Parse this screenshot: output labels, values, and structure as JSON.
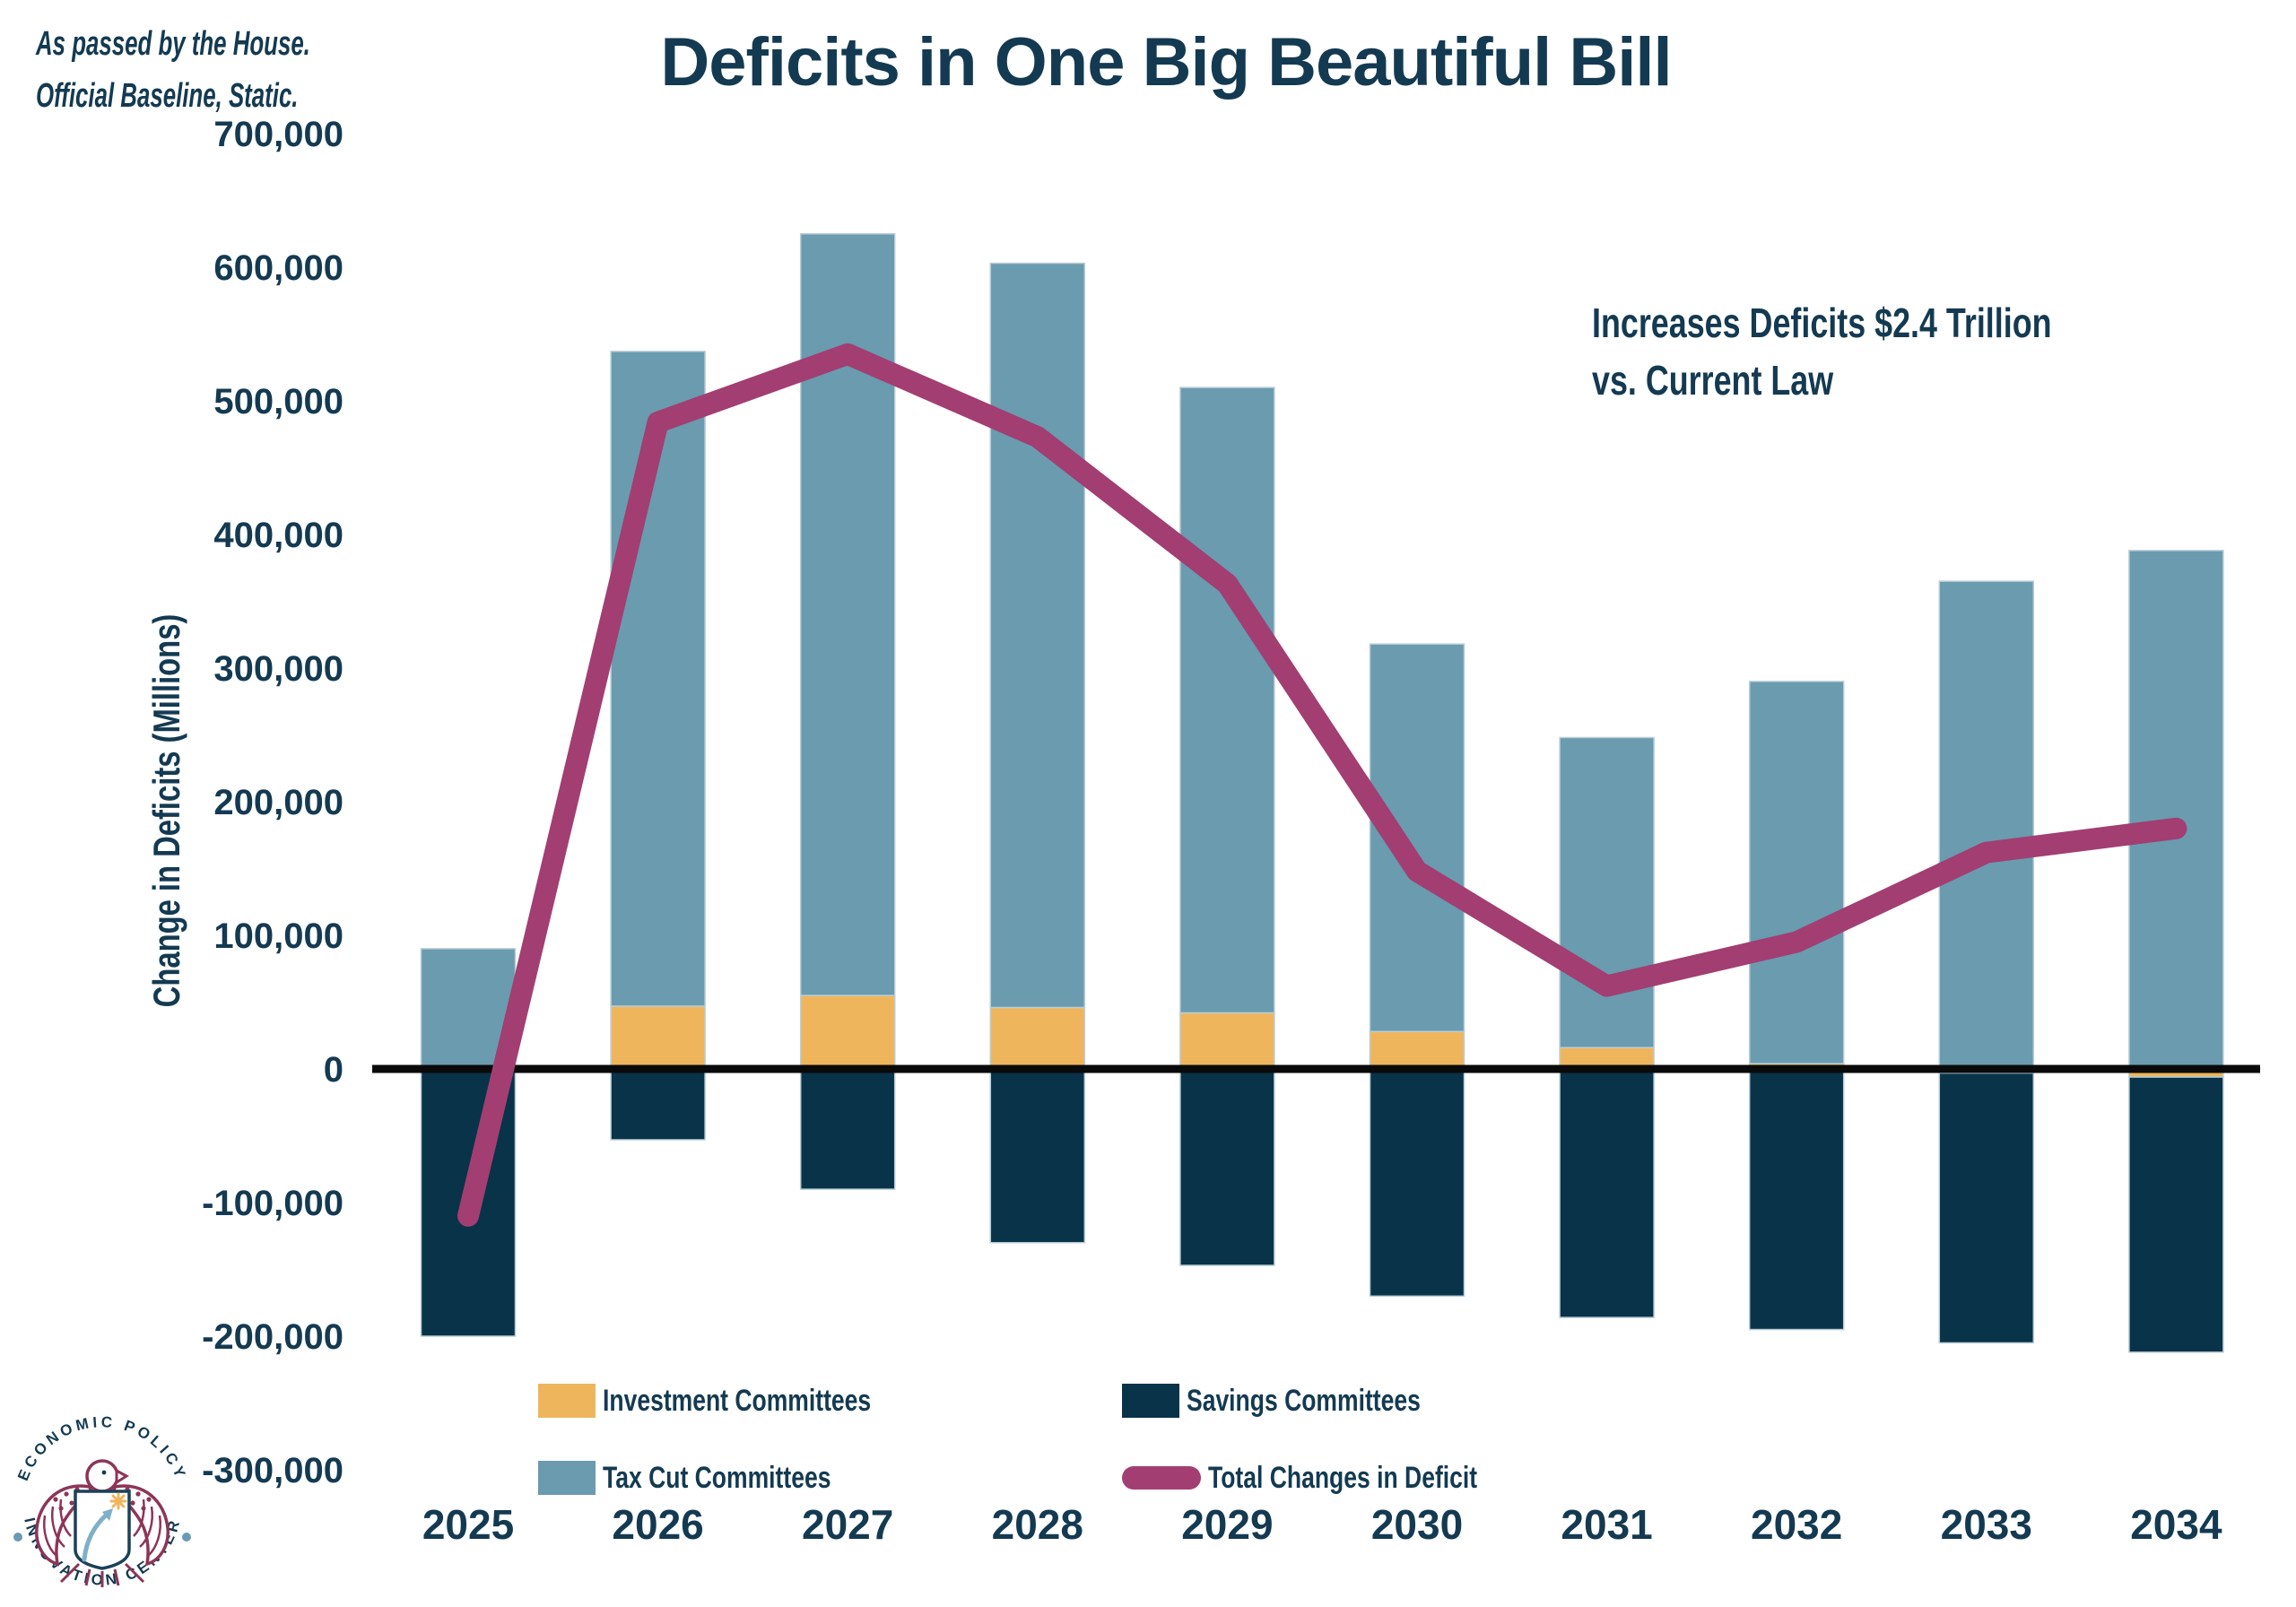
{
  "note": {
    "line1": "As passed by the House.",
    "line2": "Official Baseline, Static."
  },
  "title": "Deficits in One Big Beautiful Bill",
  "annotation": {
    "line1": "Increases Deficits $2.4 Trillion",
    "line2": "vs. Current Law"
  },
  "y_axis": {
    "title": "Change in Deficits (Millions)",
    "tick_values": [
      700000,
      600000,
      500000,
      400000,
      300000,
      200000,
      100000,
      0,
      -100000,
      -200000,
      -300000
    ],
    "tick_labels": [
      "700,000",
      "600,000",
      "500,000",
      "400,000",
      "300,000",
      "200,000",
      "100,000",
      "0",
      "-100,000",
      "-200,000",
      "-300,000"
    ]
  },
  "legend": {
    "items": [
      {
        "label": "Investment Committees",
        "color": "#EFB55C",
        "shape": "square"
      },
      {
        "label": "Savings Committees",
        "color": "#083349",
        "shape": "square"
      },
      {
        "label": "Tax Cut Committees",
        "color": "#6A9BAF",
        "shape": "square"
      },
      {
        "label": "Total Changes in Deficit",
        "color": "#A23E72",
        "shape": "pill"
      }
    ]
  },
  "logo": {
    "top_text": "ECONOMIC POLICY",
    "bottom_text": "INNOVATION CENTER"
  },
  "colors": {
    "background": "#FFFFFF",
    "text_navy": "#143A52",
    "bar_yellow": "#EFB55C",
    "bar_blue": "#6A9BAF",
    "bar_navy": "#083349",
    "line_magenta": "#A23E72",
    "axis_line": "#0A0A0A",
    "logo_maroon": "#8D3557",
    "logo_light_blue": "#7FB0C9",
    "logo_star_yellow": "#F0B45C"
  },
  "chart_data": {
    "type": "bar",
    "subtype": "stacked-bar-with-line-overlay",
    "title": "Deficits in One Big Beautiful Bill",
    "xlabel": "",
    "ylabel": "Change in Deficits (Millions)",
    "categories": [
      "2025",
      "2026",
      "2027",
      "2028",
      "2029",
      "2030",
      "2031",
      "2032",
      "2033",
      "2034"
    ],
    "series": [
      {
        "name": "Investment Committees",
        "type": "bar",
        "color": "#EFB55C",
        "values": [
          0,
          47000,
          55000,
          46000,
          42000,
          28000,
          16000,
          4000,
          -3000,
          -6000
        ]
      },
      {
        "name": "Tax Cut Committees",
        "type": "bar",
        "color": "#6A9BAF",
        "values": [
          90000,
          490000,
          570000,
          557000,
          468000,
          290000,
          232000,
          286000,
          365000,
          388000
        ]
      },
      {
        "name": "Savings Committees",
        "type": "bar",
        "color": "#083349",
        "values": [
          -200000,
          -53000,
          -90000,
          -130000,
          -147000,
          -170000,
          -186000,
          -195000,
          -202000,
          -206000
        ]
      },
      {
        "name": "Total Changes in Deficit",
        "type": "line",
        "color": "#A23E72",
        "values": [
          -110000,
          484000,
          535000,
          473000,
          363000,
          148000,
          62000,
          95000,
          162000,
          180000
        ]
      }
    ],
    "ylim": [
      -300000,
      700000
    ],
    "ytick_step": 100000,
    "grid": false,
    "legend_position": "bottom"
  }
}
